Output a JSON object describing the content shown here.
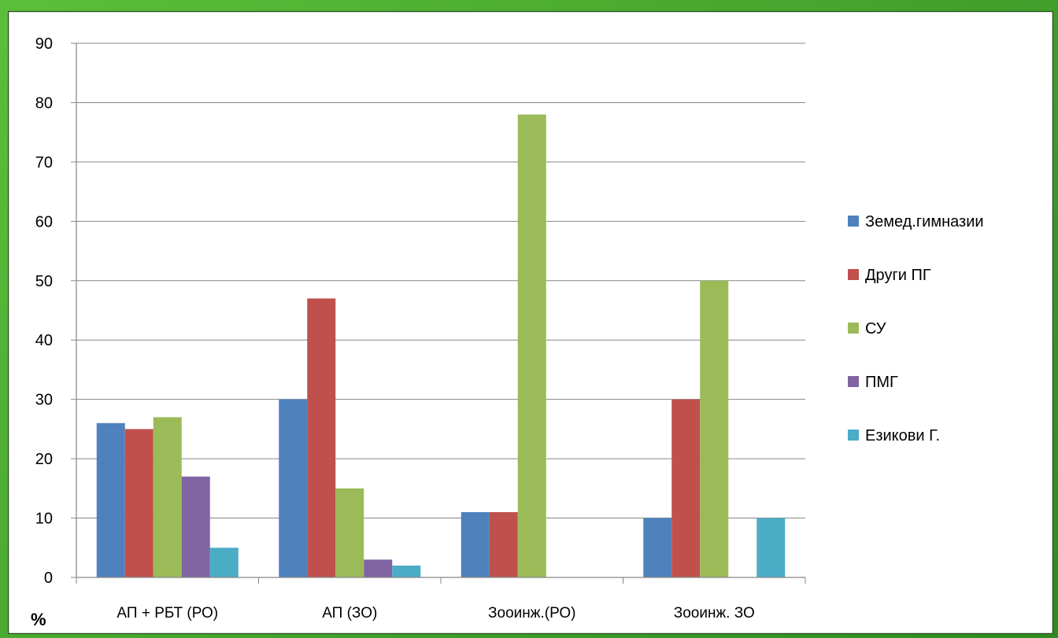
{
  "chart_data": {
    "type": "bar",
    "title": "",
    "xlabel": "",
    "ylabel": "%",
    "ylim": [
      0,
      90
    ],
    "yticks": [
      0,
      10,
      20,
      30,
      40,
      50,
      60,
      70,
      80,
      90
    ],
    "grid": true,
    "legend": "right",
    "categories": [
      "АП + РБТ (РО)",
      "АП (ЗО)",
      "Зооинж.(РО)",
      "Зооинж. ЗО"
    ],
    "series": [
      {
        "name": "Земед.гимназии",
        "color": "#4f81bd",
        "values": [
          26,
          30,
          11,
          10
        ]
      },
      {
        "name": "Други ПГ",
        "color": "#c0504d",
        "values": [
          25,
          47,
          11,
          30
        ]
      },
      {
        "name": "СУ",
        "color": "#9bbb59",
        "values": [
          27,
          15,
          78,
          50
        ]
      },
      {
        "name": "ПМГ",
        "color": "#8064a2",
        "values": [
          17,
          3,
          0,
          0
        ]
      },
      {
        "name": "Езикови Г.",
        "color": "#4bacc6",
        "values": [
          5,
          2,
          0,
          10
        ]
      }
    ]
  }
}
